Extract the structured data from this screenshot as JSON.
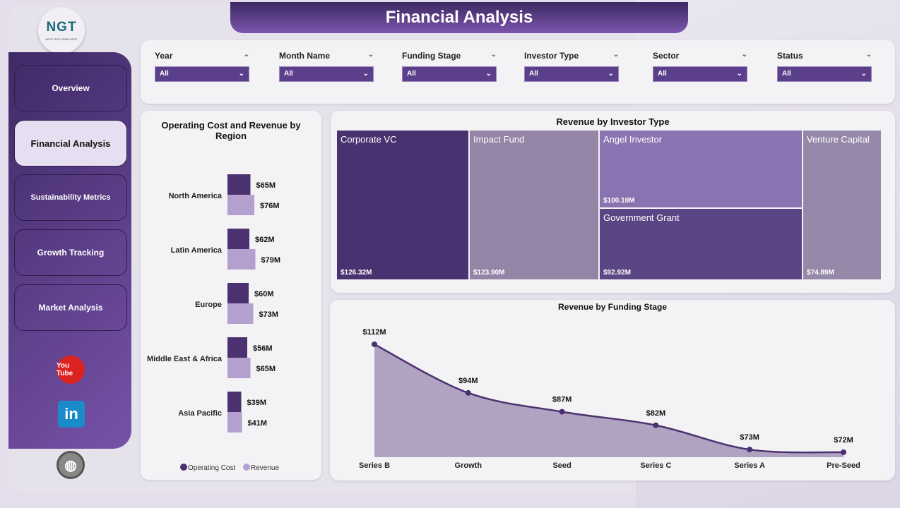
{
  "header": {
    "title": "Financial Analysis"
  },
  "logo": {
    "text": "NGT",
    "subtext": "NEXT GEN TEMPLATES"
  },
  "sidebar": {
    "items": [
      {
        "label": "Overview"
      },
      {
        "label": "Financial Analysis",
        "active": true
      },
      {
        "label": "Sustainability Metrics"
      },
      {
        "label": "Growth Tracking"
      },
      {
        "label": "Market Analysis"
      }
    ],
    "social": [
      {
        "icon": "youtube-icon",
        "label": "You Tube"
      },
      {
        "icon": "linkedin-icon",
        "label": "in"
      },
      {
        "icon": "globe-icon"
      }
    ]
  },
  "filters": [
    {
      "label": "Year",
      "value": "All"
    },
    {
      "label": "Month Name",
      "value": "All"
    },
    {
      "label": "Funding Stage",
      "value": "All"
    },
    {
      "label": "Investor Type",
      "value": "All"
    },
    {
      "label": "Sector",
      "value": "All"
    },
    {
      "label": "Status",
      "value": "All"
    }
  ],
  "colors": {
    "accent": "#5b3f8a",
    "operating_cost": "#4b3170",
    "revenue": "#b3a0cf"
  },
  "chart_data": [
    {
      "type": "bar",
      "orientation": "horizontal",
      "title": "Operating Cost and Revenue by Region",
      "categories": [
        "North America",
        "Latin America",
        "Europe",
        "Middle East & Africa",
        "Asia Pacific"
      ],
      "series": [
        {
          "name": "Operating Cost",
          "values": [
            65,
            62,
            60,
            56,
            39
          ],
          "labels": [
            "$65M",
            "$62M",
            "$60M",
            "$56M",
            "$39M"
          ]
        },
        {
          "name": "Revenue",
          "values": [
            76,
            79,
            73,
            65,
            41
          ],
          "labels": [
            "$76M",
            "$79M",
            "$73M",
            "$65M",
            "$41M"
          ]
        }
      ],
      "legend": "bottom"
    },
    {
      "type": "treemap",
      "title": "Revenue by Investor Type",
      "items": [
        {
          "name": "Corporate VC",
          "value": 126.32,
          "label": "$126.32M"
        },
        {
          "name": "Impact Fund",
          "value": 123.9,
          "label": "$123.90M"
        },
        {
          "name": "Angel Investor",
          "value": 100.1,
          "label": "$100.10M"
        },
        {
          "name": "Government Grant",
          "value": 92.92,
          "label": "$92.92M"
        },
        {
          "name": "Venture Capital",
          "value": 74.89,
          "label": "$74.89M"
        }
      ]
    },
    {
      "type": "area",
      "title": "Revenue by Funding Stage",
      "categories": [
        "Series B",
        "Growth",
        "Seed",
        "Series C",
        "Series A",
        "Pre-Seed"
      ],
      "values": [
        112,
        94,
        87,
        82,
        73,
        72
      ],
      "labels": [
        "$112M",
        "$94M",
        "$87M",
        "$82M",
        "$73M",
        "$72M"
      ]
    }
  ]
}
